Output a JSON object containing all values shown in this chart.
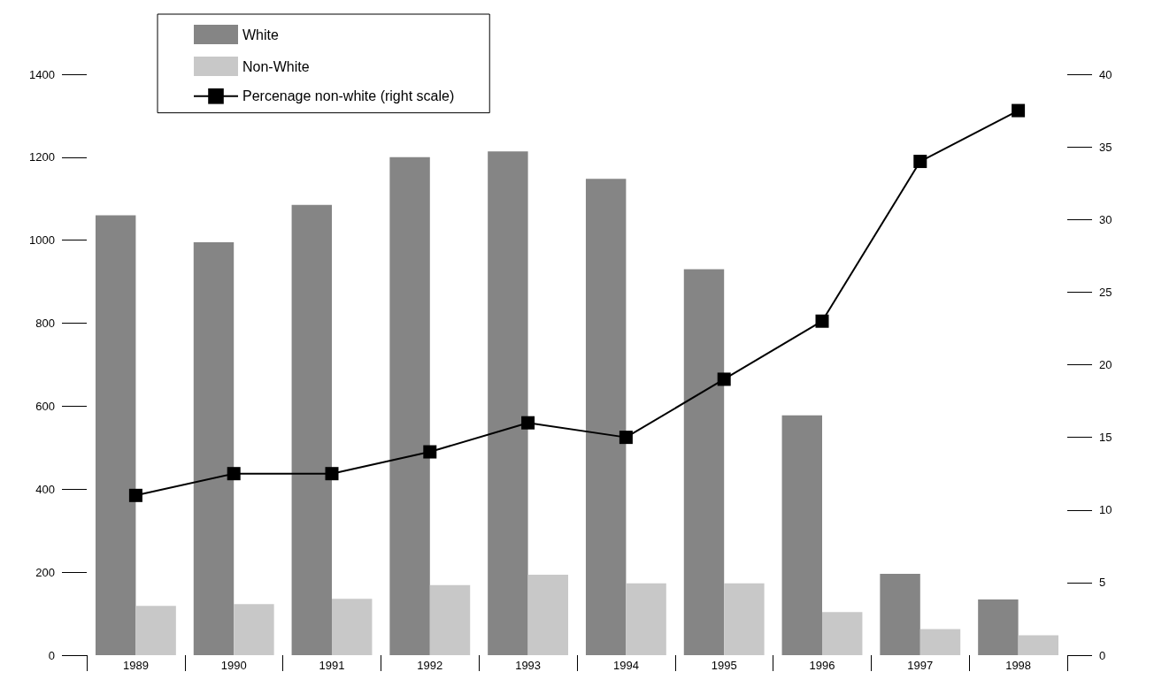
{
  "chart_data": {
    "type": "bar",
    "categories": [
      "1989",
      "1990",
      "1991",
      "1992",
      "1993",
      "1994",
      "1995",
      "1996",
      "1997",
      "1998"
    ],
    "series": [
      {
        "name": "White",
        "color": "#858585",
        "values": [
          1060,
          995,
          1085,
          1200,
          1214,
          1148,
          930,
          578,
          196,
          134
        ]
      },
      {
        "name": "Non-White",
        "color": "#c8c8c8",
        "values": [
          119,
          123,
          136,
          169,
          194,
          173,
          173,
          104,
          63,
          48
        ]
      },
      {
        "name": "Percenage non-white (right scale)",
        "type": "line",
        "axis": "y2",
        "color": "#000000",
        "values": [
          11,
          12.5,
          12.5,
          14,
          16,
          15,
          19,
          23,
          34,
          37.5
        ]
      }
    ],
    "ylim": [
      0,
      1400
    ],
    "yticks": [
      0,
      200,
      400,
      600,
      800,
      1000,
      1200,
      1400
    ],
    "y2lim": [
      0,
      40
    ],
    "y2ticks": [
      0,
      5,
      10,
      15,
      20,
      25,
      30,
      35,
      40
    ],
    "grid": false,
    "legend": "top left",
    "marker": "square",
    "line_style": "solid"
  }
}
